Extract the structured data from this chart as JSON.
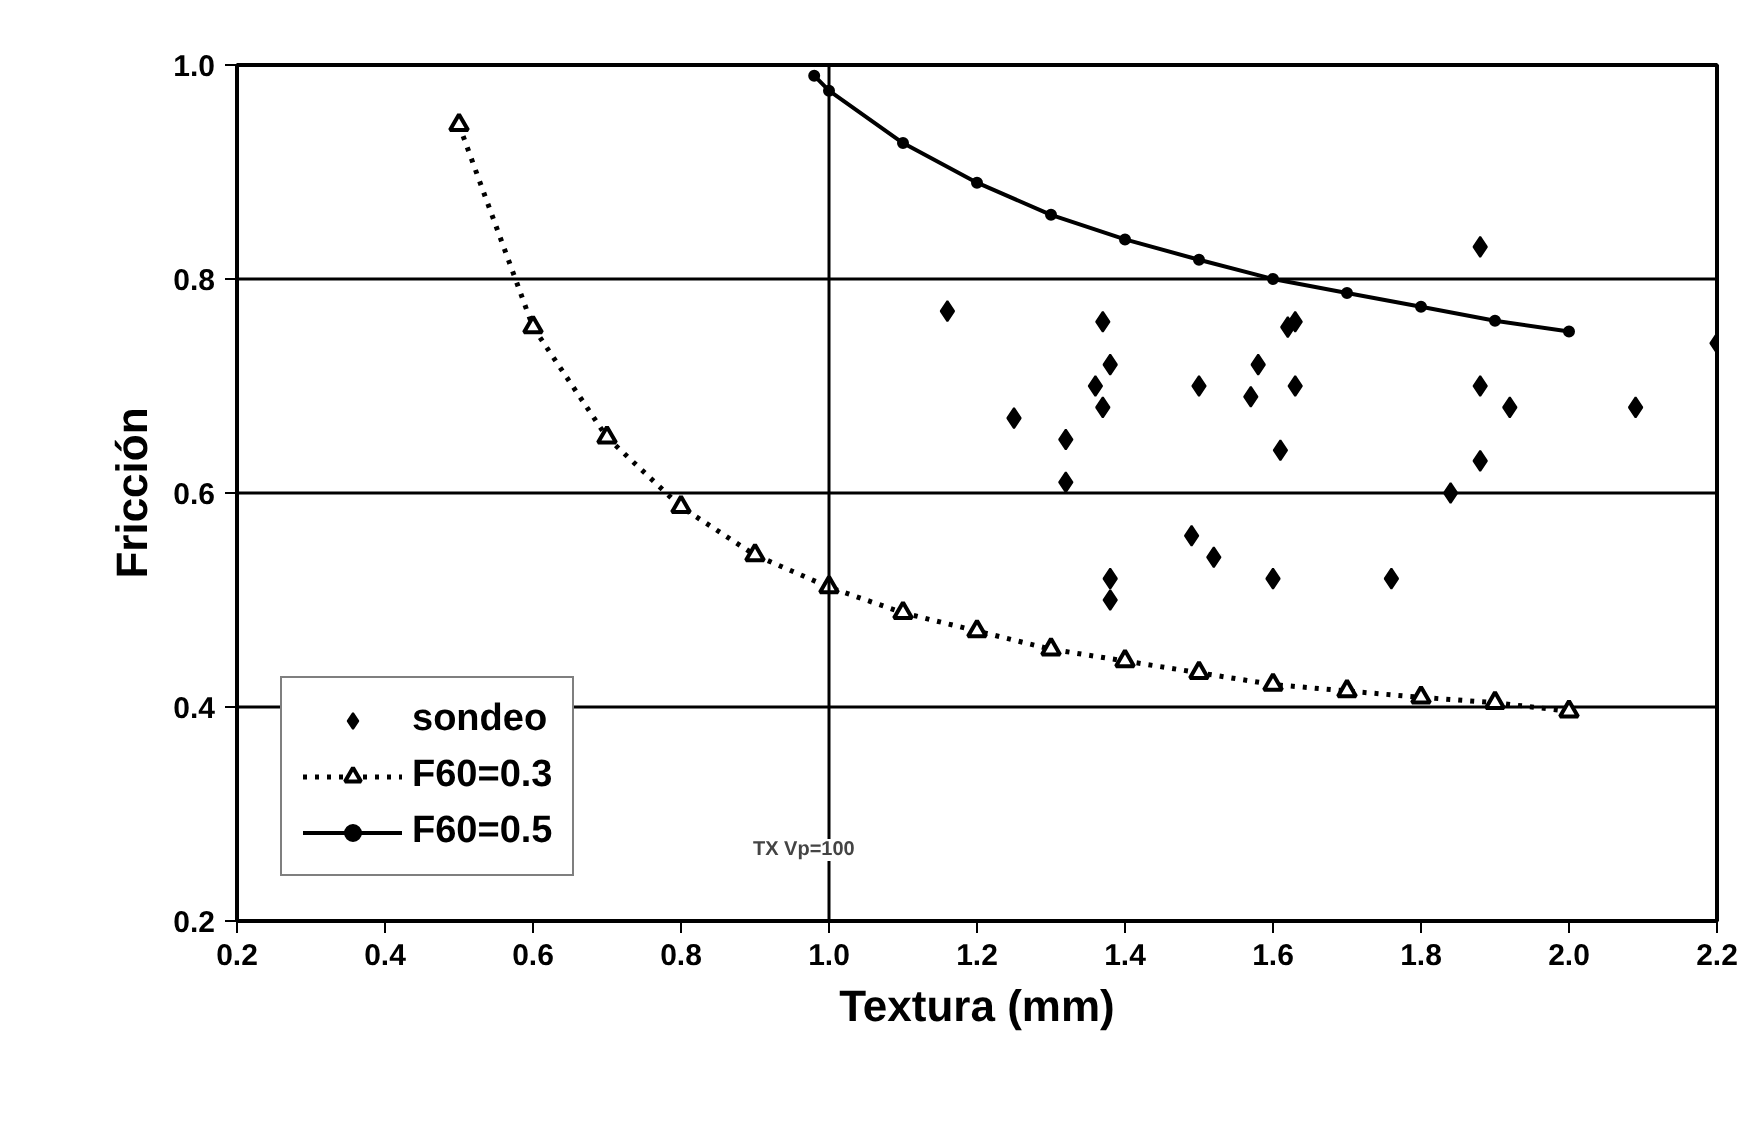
{
  "chart_data": {
    "type": "scatter",
    "xlabel": "Textura (mm)",
    "ylabel": "Fricción",
    "xlim": [
      0.2,
      2.2
    ],
    "ylim": [
      0.2,
      1.0
    ],
    "xticks": [
      {
        "value": 0.2,
        "label": "0.2"
      },
      {
        "value": 0.4,
        "label": "0.4"
      },
      {
        "value": 0.6,
        "label": "0.6"
      },
      {
        "value": 0.8,
        "label": "0.8"
      },
      {
        "value": 1.0,
        "label": "1.0"
      },
      {
        "value": 1.2,
        "label": "1.2"
      },
      {
        "value": 1.4,
        "label": "1.4"
      },
      {
        "value": 1.6,
        "label": "1.6"
      },
      {
        "value": 1.8,
        "label": "1.8"
      },
      {
        "value": 2.0,
        "label": "2.0"
      },
      {
        "value": 2.2,
        "label": "2.2"
      }
    ],
    "yticks": [
      {
        "value": 0.2,
        "label": "0.2"
      },
      {
        "value": 0.4,
        "label": "0.4"
      },
      {
        "value": 0.6,
        "label": "0.6"
      },
      {
        "value": 0.8,
        "label": "0.8"
      },
      {
        "value": 1.0,
        "label": "1.0"
      }
    ],
    "grid": "y",
    "legend": "bottom left",
    "ref_lines": [
      {
        "axis": "x",
        "value": 1.0,
        "label": "TX Vp=100",
        "color": "#000000"
      }
    ],
    "series": [
      {
        "name": "sondeo",
        "marker": "diamond",
        "color": "#000000",
        "x": [
          1.16,
          1.37,
          1.38,
          1.36,
          1.37,
          1.25,
          1.32,
          1.5,
          1.57,
          1.58,
          1.62,
          1.63,
          1.63,
          1.88,
          1.88,
          1.92,
          2.09,
          2.2,
          1.32,
          1.61,
          1.88,
          1.84,
          1.49,
          1.52,
          1.38,
          1.38,
          1.6,
          1.76
        ],
        "values": [
          0.77,
          0.76,
          0.72,
          0.7,
          0.68,
          0.67,
          0.65,
          0.7,
          0.69,
          0.72,
          0.755,
          0.76,
          0.7,
          0.83,
          0.7,
          0.68,
          0.68,
          0.74,
          0.61,
          0.64,
          0.63,
          0.6,
          0.56,
          0.54,
          0.52,
          0.5,
          0.52,
          0.52
        ]
      },
      {
        "name": "F60=0.3",
        "type": "line",
        "marker": "triangle",
        "line_style": "dotted",
        "color": "#000000",
        "x": [
          0.5,
          0.6,
          0.7,
          0.8,
          0.9,
          1.0,
          1.1,
          1.2,
          1.3,
          1.4,
          1.5,
          1.6,
          1.7,
          1.8,
          1.9,
          2.0
        ],
        "values": [
          0.944,
          0.755,
          0.652,
          0.587,
          0.542,
          0.512,
          0.488,
          0.471,
          0.454,
          0.443,
          0.432,
          0.421,
          0.415,
          0.409,
          0.404,
          0.396
        ]
      },
      {
        "name": "F60=0.5",
        "type": "line",
        "marker": "circle",
        "line_style": "solid",
        "color": "#000000",
        "x": [
          0.98,
          1.0,
          1.1,
          1.2,
          1.3,
          1.4,
          1.5,
          1.6,
          1.7,
          1.8,
          1.9,
          2.0
        ],
        "values": [
          0.99,
          0.976,
          0.927,
          0.89,
          0.86,
          0.837,
          0.818,
          0.8,
          0.787,
          0.774,
          0.761,
          0.751
        ]
      }
    ]
  }
}
